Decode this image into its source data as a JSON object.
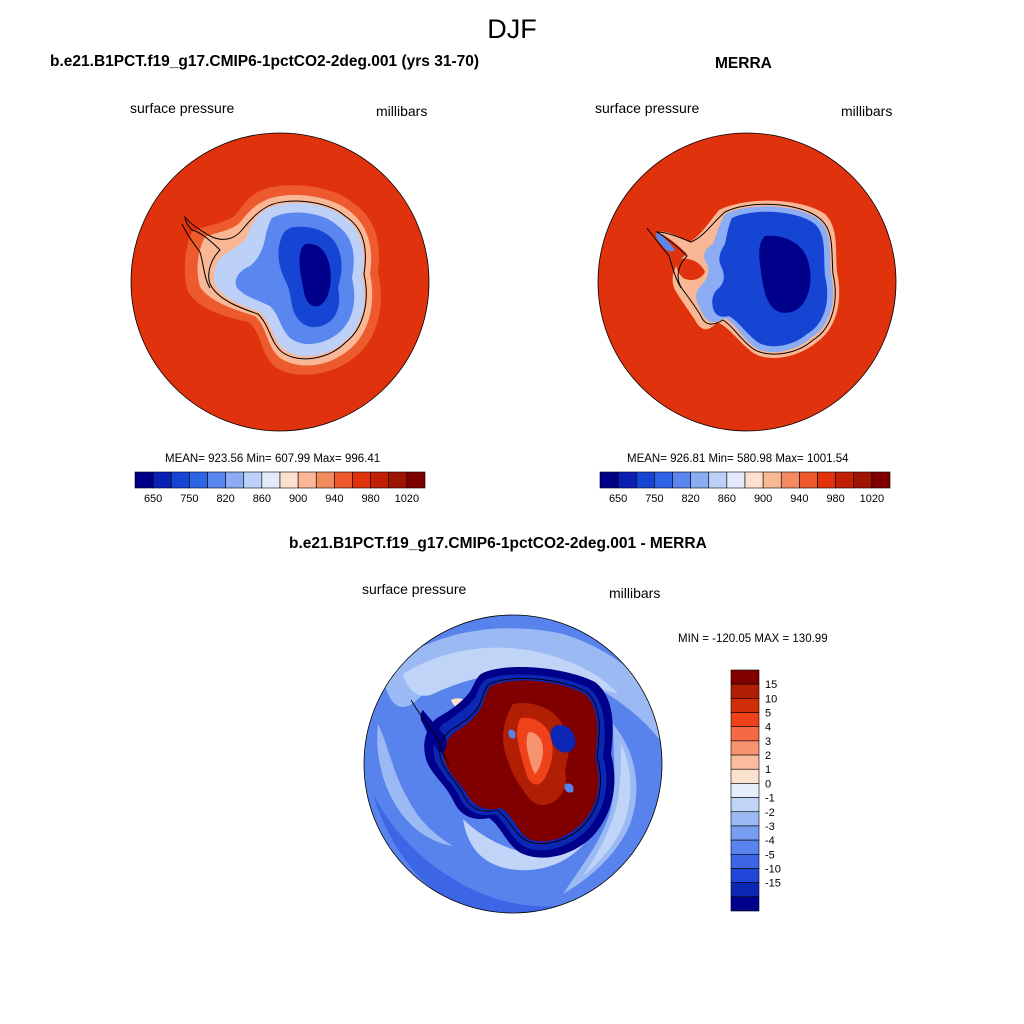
{
  "page_title": "DJF",
  "panels": [
    {
      "title": "b.e21.B1PCT.f19_g17.CMIP6-1pctCO2-2deg.001 (yrs 31-70)",
      "left_label": "surface pressure",
      "right_label": "millibars",
      "stats": "MEAN= 923.56  Min= 607.99  Max= 996.41"
    },
    {
      "title": "MERRA",
      "left_label": "surface pressure",
      "right_label": "millibars",
      "stats": "MEAN= 926.81  Min= 580.98  Max= 1001.54"
    },
    {
      "title": "b.e21.B1PCT.f19_g17.CMIP6-1pctCO2-2deg.001 - MERRA",
      "left_label": "surface pressure",
      "right_label": "millibars",
      "stats": "MIN = -120.05 MAX = 130.99"
    }
  ],
  "abs_colorbar": {
    "colors": [
      "#00008a",
      "#0b1fb3",
      "#1745d3",
      "#2f64e6",
      "#5a86ef",
      "#8cacf4",
      "#bcd0f8",
      "#e4ecfb",
      "#fde0cd",
      "#f9b796",
      "#f48a5f",
      "#ec5a2e",
      "#e0330d",
      "#c02005",
      "#a01404",
      "#800000"
    ],
    "labels": [
      "650",
      "750",
      "820",
      "860",
      "900",
      "940",
      "980",
      "1020"
    ]
  },
  "diff_colorbar": {
    "colors": [
      "#800000",
      "#b01e04",
      "#d02e08",
      "#f0421a",
      "#f36a45",
      "#f79470",
      "#fbbc9e",
      "#fde2d0",
      "#e6eefb",
      "#c0d4f8",
      "#9bbaf3",
      "#779ef0",
      "#5882ec",
      "#3d66e6",
      "#2146d8",
      "#0d27b5",
      "#00008a"
    ],
    "labels": [
      "15",
      "10",
      "5",
      "4",
      "3",
      "2",
      "1",
      "0",
      "-1",
      "-2",
      "-3",
      "-4",
      "-5",
      "-10",
      "-15"
    ]
  },
  "colors": {
    "ocean_abs": "#e0330d",
    "coast": "#000000"
  }
}
